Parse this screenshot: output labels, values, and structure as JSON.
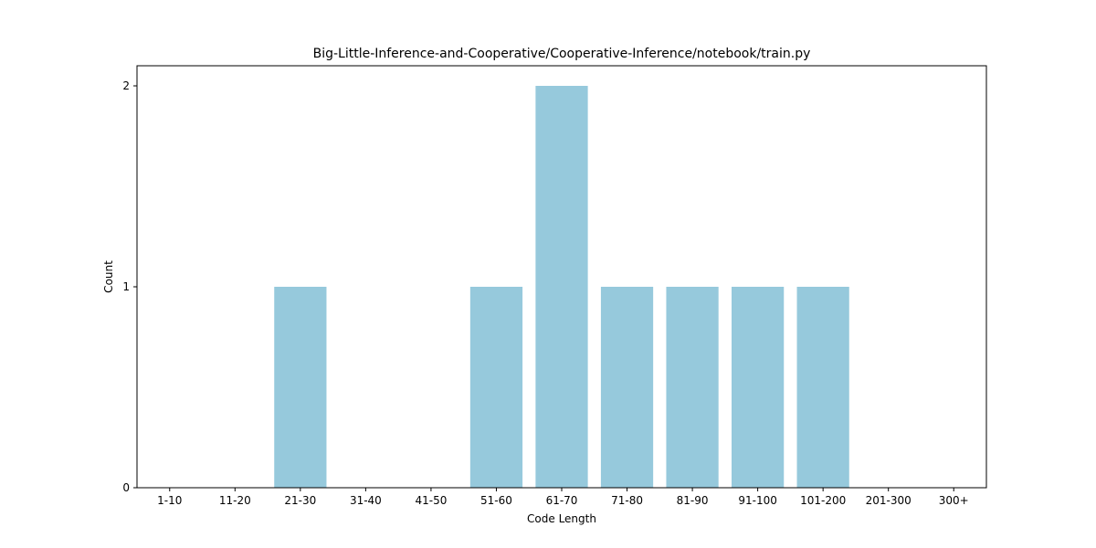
{
  "chart_data": {
    "type": "bar",
    "title": "Big-Little-Inference-and-Cooperative/Cooperative-Inference/notebook/train.py",
    "xlabel": "Code Length",
    "ylabel": "Count",
    "categories": [
      "1-10",
      "11-20",
      "21-30",
      "31-40",
      "41-50",
      "51-60",
      "61-70",
      "71-80",
      "81-90",
      "91-100",
      "101-200",
      "201-300",
      "300+"
    ],
    "values": [
      0,
      0,
      1,
      0,
      0,
      1,
      2,
      1,
      1,
      1,
      1,
      0,
      0
    ],
    "ylim": [
      0,
      2.1
    ],
    "yticks": [
      0,
      1,
      2
    ],
    "grid": false,
    "bar_color": "#96c9dc"
  }
}
